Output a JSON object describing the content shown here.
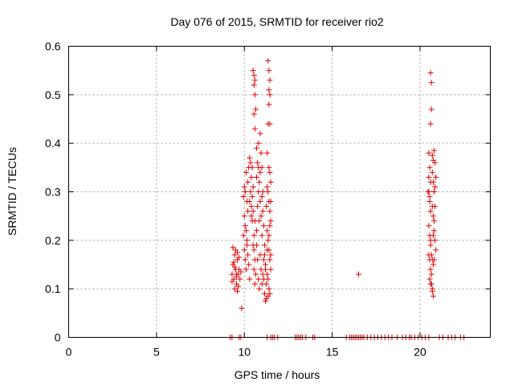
{
  "chart_data": {
    "type": "scatter",
    "title": "Day 076 of 2015, SRMTID for receiver rio2",
    "xlabel": "GPS time / hours",
    "ylabel": "SRMTID / TECUs",
    "xlim": [
      0,
      24
    ],
    "ylim": [
      0,
      0.6
    ],
    "xticks": [
      0,
      5,
      10,
      15,
      20
    ],
    "yticks": [
      0,
      0.1,
      0.2,
      0.3,
      0.4,
      0.5,
      0.6
    ],
    "xtick_labels": [
      "0",
      "5",
      "10",
      "15",
      "20"
    ],
    "ytick_labels": [
      "0",
      "0.1",
      "0.2",
      "0.3",
      "0.4",
      "0.5",
      "0.6"
    ],
    "grid": true,
    "marker": "+",
    "color": "#e00000",
    "series": [
      {
        "name": "SRMTID",
        "points": [
          [
            9.2,
            0.0
          ],
          [
            9.3,
            0.0
          ],
          [
            9.7,
            0.0
          ],
          [
            9.8,
            0.0
          ],
          [
            11.3,
            0.0
          ],
          [
            11.5,
            0.0
          ],
          [
            11.6,
            0.0
          ],
          [
            11.7,
            0.0
          ],
          [
            11.9,
            0.0
          ],
          [
            12.9,
            0.0
          ],
          [
            13.0,
            0.0
          ],
          [
            13.1,
            0.0
          ],
          [
            13.2,
            0.0
          ],
          [
            13.3,
            0.0
          ],
          [
            13.5,
            0.0
          ],
          [
            13.9,
            0.0
          ],
          [
            14.0,
            0.0
          ],
          [
            15.8,
            0.0
          ],
          [
            16.0,
            0.0
          ],
          [
            16.1,
            0.0
          ],
          [
            16.2,
            0.0
          ],
          [
            16.3,
            0.0
          ],
          [
            16.4,
            0.0
          ],
          [
            16.5,
            0.0
          ],
          [
            16.6,
            0.0
          ],
          [
            16.7,
            0.0
          ],
          [
            16.8,
            0.0
          ],
          [
            17.0,
            0.0
          ],
          [
            17.2,
            0.0
          ],
          [
            17.4,
            0.0
          ],
          [
            17.6,
            0.0
          ],
          [
            17.8,
            0.0
          ],
          [
            18.0,
            0.0
          ],
          [
            18.2,
            0.0
          ],
          [
            18.4,
            0.0
          ],
          [
            18.7,
            0.0
          ],
          [
            19.0,
            0.0
          ],
          [
            19.2,
            0.0
          ],
          [
            19.4,
            0.0
          ],
          [
            19.5,
            0.0
          ],
          [
            19.7,
            0.0
          ],
          [
            19.9,
            0.0
          ],
          [
            20.1,
            0.0
          ],
          [
            20.3,
            0.0
          ],
          [
            20.5,
            0.0
          ],
          [
            21.1,
            0.0
          ],
          [
            21.3,
            0.0
          ],
          [
            21.6,
            0.0
          ],
          [
            21.8,
            0.0
          ],
          [
            22.0,
            0.0
          ],
          [
            22.3,
            0.0
          ],
          [
            22.5,
            0.0
          ],
          [
            9.3,
            0.13
          ],
          [
            9.35,
            0.15
          ],
          [
            9.4,
            0.12
          ],
          [
            9.45,
            0.17
          ],
          [
            9.5,
            0.14
          ],
          [
            9.55,
            0.11
          ],
          [
            9.6,
            0.16
          ],
          [
            9.65,
            0.13
          ],
          [
            9.35,
            0.185
          ],
          [
            9.45,
            0.1
          ],
          [
            9.55,
            0.125
          ],
          [
            9.6,
            0.095
          ],
          [
            9.7,
            0.14
          ],
          [
            9.4,
            0.155
          ],
          [
            9.5,
            0.18
          ],
          [
            9.3,
            0.115
          ],
          [
            9.65,
            0.105
          ],
          [
            9.75,
            0.12
          ],
          [
            9.8,
            0.135
          ],
          [
            9.85,
            0.06
          ],
          [
            9.7,
            0.165
          ],
          [
            9.45,
            0.145
          ],
          [
            9.55,
            0.13
          ],
          [
            9.6,
            0.175
          ],
          [
            9.95,
            0.29
          ],
          [
            10.0,
            0.25
          ],
          [
            10.05,
            0.3
          ],
          [
            10.1,
            0.22
          ],
          [
            10.15,
            0.28
          ],
          [
            10.2,
            0.32
          ],
          [
            10.0,
            0.18
          ],
          [
            10.05,
            0.16
          ],
          [
            10.1,
            0.14
          ],
          [
            10.15,
            0.19
          ],
          [
            10.2,
            0.26
          ],
          [
            10.25,
            0.35
          ],
          [
            10.3,
            0.37
          ],
          [
            10.35,
            0.3
          ],
          [
            10.4,
            0.27
          ],
          [
            10.45,
            0.24
          ],
          [
            9.95,
            0.21
          ],
          [
            10.0,
            0.31
          ],
          [
            10.05,
            0.23
          ],
          [
            10.1,
            0.34
          ],
          [
            10.15,
            0.2
          ],
          [
            10.2,
            0.17
          ],
          [
            10.25,
            0.15
          ],
          [
            10.3,
            0.12
          ],
          [
            10.35,
            0.36
          ],
          [
            10.4,
            0.33
          ],
          [
            10.45,
            0.29
          ],
          [
            10.5,
            0.26
          ],
          [
            10.5,
            0.19
          ],
          [
            10.55,
            0.21
          ],
          [
            10.55,
            0.14
          ],
          [
            10.6,
            0.11
          ],
          [
            10.3,
            0.28
          ],
          [
            10.4,
            0.25
          ],
          [
            10.45,
            0.35
          ],
          [
            10.5,
            0.31
          ],
          [
            10.55,
            0.18
          ],
          [
            10.6,
            0.24
          ],
          [
            10.6,
            0.16
          ],
          [
            10.65,
            0.13
          ],
          [
            10.5,
            0.55
          ],
          [
            10.55,
            0.54
          ],
          [
            10.55,
            0.52
          ],
          [
            10.6,
            0.5
          ],
          [
            10.6,
            0.53
          ],
          [
            10.65,
            0.47
          ],
          [
            10.55,
            0.46
          ],
          [
            10.6,
            0.43
          ],
          [
            10.7,
            0.33
          ],
          [
            10.75,
            0.36
          ],
          [
            10.8,
            0.35
          ],
          [
            10.85,
            0.32
          ],
          [
            10.9,
            0.28
          ],
          [
            10.95,
            0.25
          ],
          [
            11.0,
            0.21
          ],
          [
            10.7,
            0.19
          ],
          [
            10.75,
            0.16
          ],
          [
            10.8,
            0.12
          ],
          [
            10.85,
            0.1
          ],
          [
            10.9,
            0.17
          ],
          [
            10.95,
            0.14
          ],
          [
            11.0,
            0.11
          ],
          [
            11.05,
            0.13
          ],
          [
            11.1,
            0.16
          ],
          [
            10.7,
            0.22
          ],
          [
            10.75,
            0.27
          ],
          [
            10.8,
            0.3
          ],
          [
            10.85,
            0.24
          ],
          [
            10.9,
            0.42
          ],
          [
            10.95,
            0.38
          ],
          [
            11.0,
            0.29
          ],
          [
            11.05,
            0.26
          ],
          [
            10.7,
            0.39
          ],
          [
            10.8,
            0.4
          ],
          [
            10.9,
            0.34
          ],
          [
            11.0,
            0.35
          ],
          [
            11.05,
            0.3
          ],
          [
            11.1,
            0.23
          ],
          [
            11.15,
            0.19
          ],
          [
            11.2,
            0.15
          ],
          [
            11.1,
            0.12
          ],
          [
            11.15,
            0.09
          ],
          [
            11.2,
            0.075
          ],
          [
            11.25,
            0.11
          ],
          [
            11.3,
            0.13
          ],
          [
            11.15,
            0.17
          ],
          [
            11.2,
            0.14
          ],
          [
            11.25,
            0.08
          ],
          [
            11.35,
            0.57
          ],
          [
            11.4,
            0.55
          ],
          [
            11.45,
            0.53
          ],
          [
            11.4,
            0.51
          ],
          [
            11.45,
            0.5
          ],
          [
            11.4,
            0.48
          ],
          [
            11.35,
            0.44
          ],
          [
            11.45,
            0.44
          ],
          [
            11.3,
            0.38
          ],
          [
            11.4,
            0.35
          ],
          [
            11.45,
            0.34
          ],
          [
            11.5,
            0.32
          ],
          [
            11.35,
            0.3
          ],
          [
            11.4,
            0.28
          ],
          [
            11.45,
            0.26
          ],
          [
            11.5,
            0.24
          ],
          [
            11.3,
            0.22
          ],
          [
            11.35,
            0.2
          ],
          [
            11.4,
            0.18
          ],
          [
            11.45,
            0.16
          ],
          [
            11.5,
            0.14
          ],
          [
            11.35,
            0.12
          ],
          [
            11.4,
            0.1
          ],
          [
            11.45,
            0.09
          ],
          [
            11.3,
            0.31
          ],
          [
            11.5,
            0.28
          ],
          [
            11.25,
            0.27
          ],
          [
            11.45,
            0.23
          ],
          [
            11.4,
            0.21
          ],
          [
            11.3,
            0.18
          ],
          [
            11.5,
            0.17
          ],
          [
            11.35,
            0.085
          ],
          [
            16.5,
            0.13
          ],
          [
            20.5,
            0.38
          ],
          [
            20.55,
            0.35
          ],
          [
            20.6,
            0.32
          ],
          [
            20.5,
            0.3
          ],
          [
            20.55,
            0.28
          ],
          [
            20.6,
            0.26
          ],
          [
            20.5,
            0.23
          ],
          [
            20.55,
            0.21
          ],
          [
            20.6,
            0.19
          ],
          [
            20.5,
            0.17
          ],
          [
            20.55,
            0.16
          ],
          [
            20.6,
            0.14
          ],
          [
            20.55,
            0.12
          ],
          [
            20.6,
            0.11
          ],
          [
            20.65,
            0.13
          ],
          [
            20.7,
            0.1
          ],
          [
            20.6,
            0.545
          ],
          [
            20.65,
            0.525
          ],
          [
            20.65,
            0.47
          ],
          [
            20.6,
            0.44
          ],
          [
            20.7,
            0.375
          ],
          [
            20.75,
            0.365
          ],
          [
            20.8,
            0.385
          ],
          [
            20.85,
            0.36
          ],
          [
            20.7,
            0.34
          ],
          [
            20.75,
            0.32
          ],
          [
            20.8,
            0.3
          ],
          [
            20.85,
            0.27
          ],
          [
            20.75,
            0.25
          ],
          [
            20.8,
            0.22
          ],
          [
            20.85,
            0.2
          ],
          [
            20.9,
            0.18
          ],
          [
            20.7,
            0.16
          ],
          [
            20.75,
            0.15
          ],
          [
            20.8,
            0.24
          ],
          [
            20.85,
            0.31
          ],
          [
            20.9,
            0.33
          ],
          [
            20.7,
            0.095
          ],
          [
            20.75,
            0.085
          ],
          [
            20.65,
            0.11
          ],
          [
            20.45,
            0.3
          ],
          [
            20.5,
            0.33
          ],
          [
            20.55,
            0.29
          ],
          [
            20.6,
            0.2
          ],
          [
            20.65,
            0.17
          ],
          [
            20.7,
            0.27
          ],
          [
            20.75,
            0.21
          ],
          [
            20.8,
            0.16
          ]
        ]
      }
    ]
  }
}
